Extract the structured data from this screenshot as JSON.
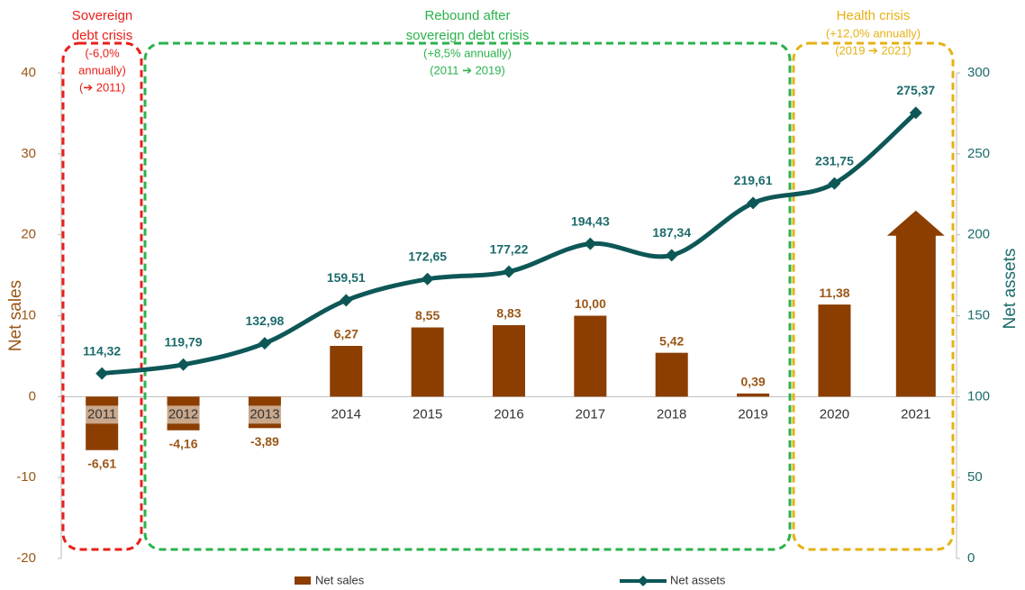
{
  "chart_data": {
    "type": "bar-line",
    "categories": [
      "2011",
      "2012",
      "2013",
      "2014",
      "2015",
      "2016",
      "2017",
      "2018",
      "2019",
      "2020",
      "2021"
    ],
    "series": [
      {
        "name": "Net sales",
        "type": "bar",
        "color": "#8b3e00",
        "axis": "y",
        "values": [
          -6.61,
          -4.16,
          -3.89,
          6.27,
          8.55,
          8.83,
          10.0,
          5.42,
          0.39,
          11.38,
          23
        ],
        "value_labels": [
          "-6,61",
          "-4,16",
          "-3,89",
          "6,27",
          "8,55",
          "8,83",
          "10,00",
          "5,42",
          "0,39",
          "11,38",
          null
        ],
        "last_bar_style": "arrow"
      },
      {
        "name": "Net assets",
        "type": "line",
        "color": "#0d5757",
        "axis": "y2",
        "values": [
          114.32,
          119.79,
          132.98,
          159.51,
          172.65,
          177.22,
          194.43,
          187.34,
          219.61,
          231.75,
          275.37
        ],
        "value_labels": [
          "114,32",
          "119,79",
          "132,98",
          "159,51",
          "172,65",
          "177,22",
          "194,43",
          "187,34",
          "219,61",
          "231,75",
          "275,37"
        ]
      }
    ],
    "ylabel": "Net sales",
    "y2label": "Net assets",
    "ylim": [
      -20,
      40
    ],
    "yticks": [
      -20,
      -10,
      0,
      10,
      20,
      30,
      40
    ],
    "y2lim": [
      0,
      300
    ],
    "y2ticks": [
      0,
      50,
      100,
      150,
      200,
      250,
      300
    ],
    "legend": "bottom",
    "annotations": [
      {
        "title_lines": [
          "Sovereign",
          "debt crisis"
        ],
        "note_lines": [
          "(-6,0%",
          "annually)",
          "(➔ 2011)"
        ],
        "color": "#e8201a"
      },
      {
        "title_lines": [
          "Rebound after",
          "sovereign debt crisis"
        ],
        "note_lines": [
          "(+8,5% annually)",
          "(2011 ➔ 2019)"
        ],
        "color": "#2bb24c"
      },
      {
        "title_lines": [
          "Health crisis"
        ],
        "note_lines": [
          "(+12,0% annually)",
          "(2019 ➔ 2021)"
        ],
        "color": "#e5b114"
      }
    ]
  }
}
